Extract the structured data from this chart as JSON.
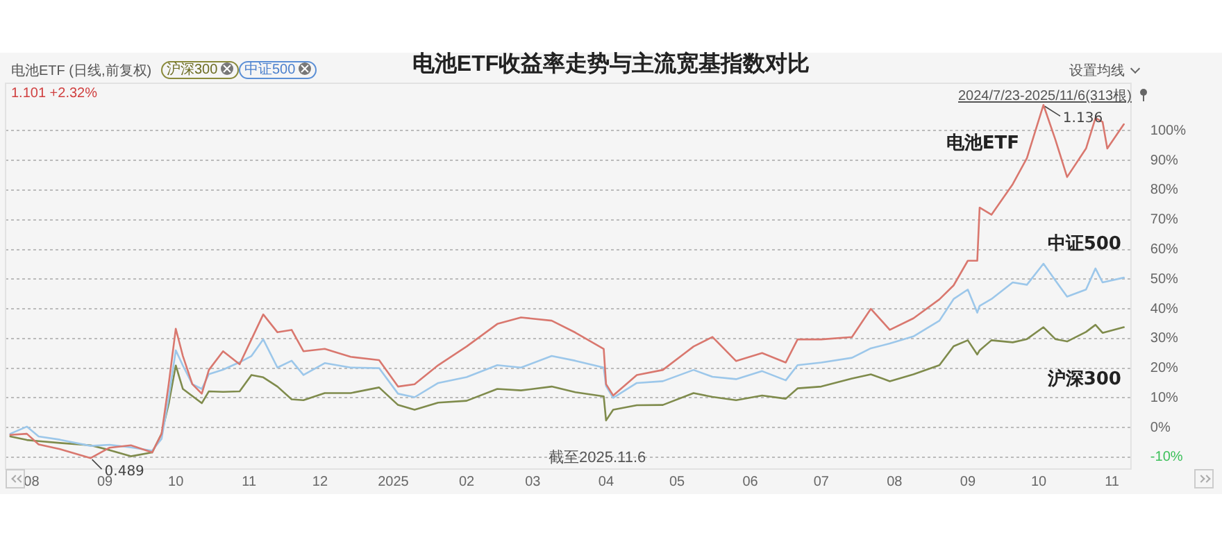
{
  "chart_data": {
    "type": "line",
    "title": "电池ETF收益率走势与主流宽基指数对比",
    "annotations": [
      "电池ETF (日线,前复权)",
      "沪深300",
      "中证500",
      "1.101 +2.32%",
      "设置均线",
      "2024/7/23-2025/11/6(313根)",
      "截至2025.11.6",
      {
        "text": "1.136",
        "x": "2025-10-03",
        "y": 108.7
      },
      {
        "text": "0.489",
        "x": "2024-08-26",
        "y": -10.3
      }
    ],
    "x": [
      "2024-07-23",
      "2024-07-30",
      "2024-08-04",
      "2024-08-13",
      "2024-08-26",
      "2024-09-03",
      "2024-09-12",
      "2024-09-21",
      "2024-09-25",
      "2024-09-28",
      "2024-10-01",
      "2024-10-04",
      "2024-10-08",
      "2024-10-12",
      "2024-10-15",
      "2024-10-21",
      "2024-10-28",
      "2024-11-02",
      "2024-11-07",
      "2024-11-13",
      "2024-11-19",
      "2024-11-24",
      "2024-12-03",
      "2024-12-14",
      "2024-12-26",
      "2025-01-03",
      "2025-01-10",
      "2025-01-20",
      "2025-02-01",
      "2025-02-14",
      "2025-02-24",
      "2025-03-09",
      "2025-03-19",
      "2025-03-31",
      "2025-04-01",
      "2025-04-04",
      "2025-04-14",
      "2025-04-25",
      "2025-05-08",
      "2025-05-16",
      "2025-05-26",
      "2025-06-06",
      "2025-06-16",
      "2025-06-21",
      "2025-07-01",
      "2025-07-14",
      "2025-07-22",
      "2025-07-30",
      "2025-08-09",
      "2025-08-20",
      "2025-08-26",
      "2025-09-01",
      "2025-09-05",
      "2025-09-06",
      "2025-09-11",
      "2025-09-20",
      "2025-09-26",
      "2025-10-03",
      "2025-10-08",
      "2025-10-13",
      "2025-10-21",
      "2025-10-25",
      "2025-10-28",
      "2025-11-06"
    ],
    "series": [
      {
        "name": "电池ETF",
        "color": "#d9776e",
        "x": [
          "2024-07-23",
          "2024-07-30",
          "2024-08-04",
          "2024-08-13",
          "2024-08-26",
          "2024-09-03",
          "2024-09-12",
          "2024-09-21",
          "2024-09-25",
          "2024-09-28",
          "2024-10-01",
          "2024-10-04",
          "2024-10-08",
          "2024-10-12",
          "2024-10-15",
          "2024-10-21",
          "2024-10-28",
          "2024-11-02",
          "2024-11-07",
          "2024-11-13",
          "2024-11-19",
          "2024-11-24",
          "2024-12-03",
          "2024-12-14",
          "2024-12-26",
          "2025-01-03",
          "2025-01-10",
          "2025-01-20",
          "2025-02-01",
          "2025-02-14",
          "2025-02-24",
          "2025-03-09",
          "2025-03-19",
          "2025-03-31",
          "2025-04-01",
          "2025-04-04",
          "2025-04-14",
          "2025-04-25",
          "2025-05-08",
          "2025-05-16",
          "2025-05-26",
          "2025-06-06",
          "2025-06-16",
          "2025-06-21",
          "2025-07-01",
          "2025-07-14",
          "2025-07-22",
          "2025-07-30",
          "2025-08-09",
          "2025-08-20",
          "2025-08-26",
          "2025-09-01",
          "2025-09-05",
          "2025-09-06",
          "2025-09-11",
          "2025-09-20",
          "2025-09-26",
          "2025-10-03",
          "2025-10-08",
          "2025-10-13",
          "2025-10-21",
          "2025-10-25",
          "2025-10-28",
          "2025-10-30",
          "2025-11-06"
        ],
        "values": [
          -2.5,
          -2.1,
          -5.7,
          -7.3,
          -10.3,
          -6.8,
          -6,
          -8.4,
          -2.1,
          14.6,
          33.3,
          24.1,
          14.6,
          11.4,
          19.4,
          25.7,
          21.3,
          29.7,
          38.1,
          32.1,
          32.9,
          25.7,
          26.5,
          23.8,
          22.7,
          13.8,
          14.6,
          21,
          27.3,
          34.9,
          37.1,
          36,
          32,
          26.5,
          14.6,
          10.8,
          17.7,
          19.4,
          27.3,
          30.5,
          22.4,
          25.1,
          21.9,
          29.7,
          29.7,
          30.5,
          40,
          32.9,
          36.8,
          43.2,
          47.9,
          56.2,
          56.2,
          74.1,
          71.7,
          82,
          90.8,
          108.7,
          97.1,
          84.4,
          94,
          104.3,
          103,
          94,
          102.2
        ]
      },
      {
        "name": "中证500",
        "color": "#9cc7ea",
        "values": [
          -2.1,
          0.3,
          -3,
          -4.1,
          -6.2,
          -5.8,
          -6.7,
          -7.8,
          -3.8,
          10,
          26,
          20.9,
          14.6,
          13,
          18,
          19.5,
          22,
          24.1,
          29.7,
          20.2,
          22.5,
          17.7,
          21.7,
          20.2,
          20,
          11.4,
          10.2,
          15,
          17,
          21,
          20.2,
          24.1,
          22.5,
          20.2,
          14,
          10,
          15,
          15.6,
          19.4,
          17.1,
          16.3,
          19,
          15.9,
          21,
          21.9,
          23.5,
          26.7,
          28.3,
          30.7,
          36,
          43.3,
          46.5,
          38.7,
          41,
          43.3,
          48.9,
          48.1,
          55.2,
          49.6,
          44.1,
          46.5,
          53.6,
          48.9,
          50.5
        ]
      },
      {
        "name": "沪深300",
        "color": "#7f8b4c",
        "values": [
          -3,
          -4.2,
          -4.6,
          -5.2,
          -6,
          -7.6,
          -9.7,
          -8.4,
          -2.1,
          8,
          20.9,
          13,
          10.6,
          8.2,
          12.2,
          12,
          12.2,
          17.7,
          16.9,
          13.8,
          9.5,
          9.2,
          11.6,
          11.6,
          13.5,
          7.6,
          6,
          8.4,
          9,
          13,
          12.5,
          13.8,
          11.9,
          10.5,
          2.4,
          6,
          7.5,
          7.6,
          11.6,
          10.3,
          9.2,
          10.8,
          9.7,
          13.2,
          13.8,
          16.5,
          17.9,
          15.6,
          17.9,
          21,
          27.4,
          29.4,
          24.6,
          26,
          29.4,
          28.7,
          29.8,
          33.8,
          29.8,
          29,
          32.2,
          34.6,
          31.9,
          33.8
        ]
      }
    ],
    "xlim": [
      "2024-07-21",
      "2025-11-09"
    ],
    "xticks": [
      {
        "value": "2024-08-01",
        "label": "08"
      },
      {
        "value": "2024-09-01",
        "label": "09"
      },
      {
        "value": "2024-10-01",
        "label": "10"
      },
      {
        "value": "2024-11-01",
        "label": "11"
      },
      {
        "value": "2024-12-01",
        "label": "12"
      },
      {
        "value": "2025-01-01",
        "label": "2025"
      },
      {
        "value": "2025-02-01",
        "label": "02"
      },
      {
        "value": "2025-03-01",
        "label": "03"
      },
      {
        "value": "2025-04-01",
        "label": "04"
      },
      {
        "value": "2025-05-01",
        "label": "05"
      },
      {
        "value": "2025-06-01",
        "label": "06"
      },
      {
        "value": "2025-07-01",
        "label": "07"
      },
      {
        "value": "2025-08-01",
        "label": "08"
      },
      {
        "value": "2025-09-01",
        "label": "09"
      },
      {
        "value": "2025-10-01",
        "label": "10"
      },
      {
        "value": "2025-11-01",
        "label": "11"
      }
    ],
    "ylim": [
      -14,
      116
    ],
    "yticks": [
      {
        "value": -10,
        "label": "-10%"
      },
      {
        "value": 0,
        "label": "0%"
      },
      {
        "value": 10,
        "label": "10%"
      },
      {
        "value": 20,
        "label": "20%"
      },
      {
        "value": 30,
        "label": "30%"
      },
      {
        "value": 40,
        "label": "40%"
      },
      {
        "value": 50,
        "label": "50%"
      },
      {
        "value": 60,
        "label": "60%"
      },
      {
        "value": 70,
        "label": "70%"
      },
      {
        "value": 80,
        "label": "80%"
      },
      {
        "value": 90,
        "label": "90%"
      },
      {
        "value": 100,
        "label": "100%"
      }
    ],
    "grid": "y",
    "legend": false,
    "marker": "none",
    "line_style": "solid"
  }
}
